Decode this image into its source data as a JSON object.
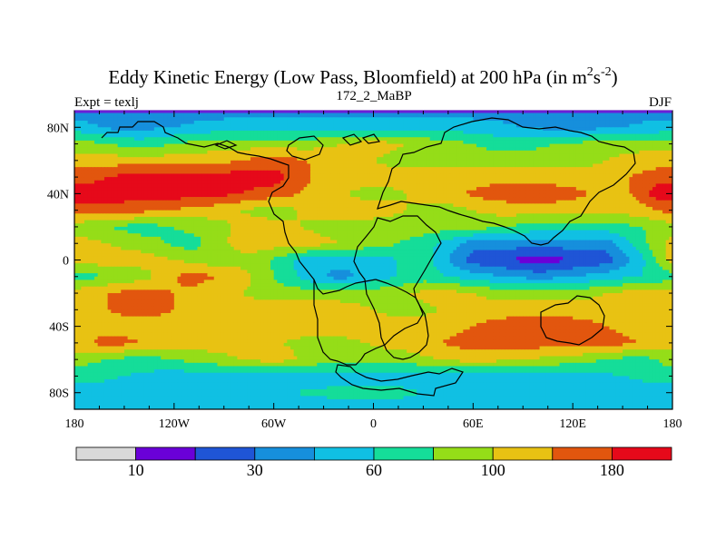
{
  "chart_data": {
    "type": "heatmap",
    "title": "Eddy Kinetic Energy (Low Pass, Bloomfield) at 200 hPa (in m",
    "title_units": {
      "sup1": "2",
      "mid": "s",
      "sup2": "-2",
      "close": ")"
    },
    "left_label": "Expt = texlj",
    "center_label": "172_2_MaBP",
    "right_label": "DJF",
    "x_ticks": [
      "180",
      "120W",
      "60W",
      "0",
      "60E",
      "120E",
      "180"
    ],
    "y_ticks": [
      "80N",
      "40N",
      "0",
      "40S",
      "80S"
    ],
    "xlim": [
      -180,
      180
    ],
    "ylim": [
      -90,
      90
    ],
    "colorbar": {
      "colors": [
        "#d9d9d9",
        "#6a00d8",
        "#1f55d6",
        "#168fdc",
        "#10c0e3",
        "#15dd99",
        "#95dd18",
        "#e8c213",
        "#e2560e",
        "#e6091a"
      ],
      "tick_labels": [
        "10",
        "30",
        "60",
        "100",
        "180"
      ]
    },
    "bands": [
      {
        "lat": 90,
        "values": [
          [
            -180,
            3
          ],
          [
            180,
            3
          ]
        ]
      },
      {
        "lat": 80,
        "values": [
          [
            -180,
            4
          ],
          [
            -150,
            3
          ],
          [
            -90,
            4
          ],
          [
            0,
            4
          ],
          [
            60,
            4
          ],
          [
            120,
            3
          ],
          [
            180,
            4
          ]
        ]
      },
      {
        "lat": 70,
        "values": [
          [
            -180,
            6
          ],
          [
            -140,
            5
          ],
          [
            -100,
            6
          ],
          [
            -40,
            6
          ],
          [
            0,
            7
          ],
          [
            40,
            6
          ],
          [
            80,
            5
          ],
          [
            140,
            6
          ],
          [
            180,
            6
          ]
        ]
      },
      {
        "lat": 60,
        "values": [
          [
            -180,
            7
          ],
          [
            -140,
            7
          ],
          [
            -100,
            7
          ],
          [
            -60,
            8
          ],
          [
            -20,
            7
          ],
          [
            20,
            6
          ],
          [
            60,
            6
          ],
          [
            120,
            6
          ],
          [
            160,
            7
          ],
          [
            180,
            7
          ]
        ]
      },
      {
        "lat": 50,
        "values": [
          [
            -180,
            8
          ],
          [
            -140,
            9
          ],
          [
            -100,
            9
          ],
          [
            -60,
            9
          ],
          [
            -30,
            7
          ],
          [
            0,
            7
          ],
          [
            30,
            7
          ],
          [
            60,
            7
          ],
          [
            100,
            7
          ],
          [
            140,
            7
          ],
          [
            170,
            8
          ],
          [
            180,
            8
          ]
        ]
      },
      {
        "lat": 40,
        "values": [
          [
            -180,
            9
          ],
          [
            -150,
            9
          ],
          [
            -100,
            9
          ],
          [
            -60,
            8
          ],
          [
            -30,
            7
          ],
          [
            0,
            6
          ],
          [
            40,
            7
          ],
          [
            70,
            8
          ],
          [
            110,
            8
          ],
          [
            150,
            7
          ],
          [
            170,
            9
          ],
          [
            180,
            9
          ]
        ]
      },
      {
        "lat": 30,
        "values": [
          [
            -180,
            8
          ],
          [
            -150,
            8
          ],
          [
            -100,
            7
          ],
          [
            -60,
            6
          ],
          [
            -30,
            7
          ],
          [
            0,
            7
          ],
          [
            40,
            6
          ],
          [
            80,
            7
          ],
          [
            120,
            7
          ],
          [
            160,
            7
          ],
          [
            180,
            8
          ]
        ]
      },
      {
        "lat": 20,
        "values": [
          [
            -180,
            6
          ],
          [
            -140,
            5
          ],
          [
            -100,
            6
          ],
          [
            -70,
            7
          ],
          [
            -20,
            6
          ],
          [
            20,
            6
          ],
          [
            60,
            6
          ],
          [
            100,
            5
          ],
          [
            140,
            5
          ],
          [
            180,
            6
          ]
        ]
      },
      {
        "lat": 10,
        "values": [
          [
            -180,
            7
          ],
          [
            -140,
            6
          ],
          [
            -110,
            5
          ],
          [
            -80,
            7
          ],
          [
            -40,
            7
          ],
          [
            0,
            6
          ],
          [
            30,
            5
          ],
          [
            60,
            3
          ],
          [
            100,
            3
          ],
          [
            140,
            3
          ],
          [
            160,
            5
          ],
          [
            180,
            7
          ]
        ]
      },
      {
        "lat": 0,
        "values": [
          [
            -180,
            7
          ],
          [
            -140,
            7
          ],
          [
            -100,
            6
          ],
          [
            -70,
            6
          ],
          [
            -40,
            4
          ],
          [
            0,
            4
          ],
          [
            30,
            5
          ],
          [
            60,
            2
          ],
          [
            100,
            1
          ],
          [
            140,
            2
          ],
          [
            160,
            4
          ],
          [
            180,
            7
          ]
        ]
      },
      {
        "lat": -10,
        "values": [
          [
            -180,
            5
          ],
          [
            -140,
            6
          ],
          [
            -110,
            8
          ],
          [
            -80,
            7
          ],
          [
            -40,
            4
          ],
          [
            -20,
            3
          ],
          [
            0,
            4
          ],
          [
            30,
            5
          ],
          [
            60,
            4
          ],
          [
            100,
            3
          ],
          [
            140,
            4
          ],
          [
            180,
            5
          ]
        ]
      },
      {
        "lat": -20,
        "values": [
          [
            -180,
            7
          ],
          [
            -140,
            8
          ],
          [
            -100,
            7
          ],
          [
            -60,
            6
          ],
          [
            -30,
            6
          ],
          [
            0,
            6
          ],
          [
            40,
            7
          ],
          [
            80,
            6
          ],
          [
            120,
            6
          ],
          [
            160,
            7
          ],
          [
            180,
            7
          ]
        ]
      },
      {
        "lat": -30,
        "values": [
          [
            -180,
            7
          ],
          [
            -140,
            8
          ],
          [
            -100,
            7
          ],
          [
            -60,
            7
          ],
          [
            -20,
            7
          ],
          [
            20,
            6
          ],
          [
            60,
            7
          ],
          [
            100,
            7
          ],
          [
            140,
            7
          ],
          [
            180,
            7
          ]
        ]
      },
      {
        "lat": -40,
        "values": [
          [
            -180,
            7
          ],
          [
            -140,
            7
          ],
          [
            -100,
            7
          ],
          [
            -60,
            7
          ],
          [
            0,
            7
          ],
          [
            40,
            7
          ],
          [
            80,
            8
          ],
          [
            120,
            8
          ],
          [
            160,
            7
          ],
          [
            180,
            7
          ]
        ]
      },
      {
        "lat": -50,
        "values": [
          [
            -180,
            7
          ],
          [
            -160,
            8
          ],
          [
            -120,
            7
          ],
          [
            -80,
            7
          ],
          [
            -30,
            6
          ],
          [
            20,
            7
          ],
          [
            60,
            8
          ],
          [
            100,
            8
          ],
          [
            140,
            8
          ],
          [
            180,
            7
          ]
        ]
      },
      {
        "lat": -60,
        "values": [
          [
            -180,
            6
          ],
          [
            -140,
            5
          ],
          [
            -100,
            6
          ],
          [
            -60,
            7
          ],
          [
            -30,
            6
          ],
          [
            20,
            6
          ],
          [
            60,
            7
          ],
          [
            120,
            6
          ],
          [
            160,
            5
          ],
          [
            180,
            6
          ]
        ]
      },
      {
        "lat": -70,
        "values": [
          [
            -180,
            5
          ],
          [
            -120,
            4
          ],
          [
            -60,
            4
          ],
          [
            0,
            4
          ],
          [
            60,
            4
          ],
          [
            120,
            4
          ],
          [
            180,
            5
          ]
        ]
      },
      {
        "lat": -80,
        "values": [
          [
            -180,
            4
          ],
          [
            -100,
            4
          ],
          [
            0,
            5
          ],
          [
            60,
            4
          ],
          [
            120,
            4
          ],
          [
            180,
            4
          ]
        ]
      },
      {
        "lat": -90,
        "values": [
          [
            -180,
            4
          ],
          [
            180,
            4
          ]
        ]
      }
    ]
  }
}
